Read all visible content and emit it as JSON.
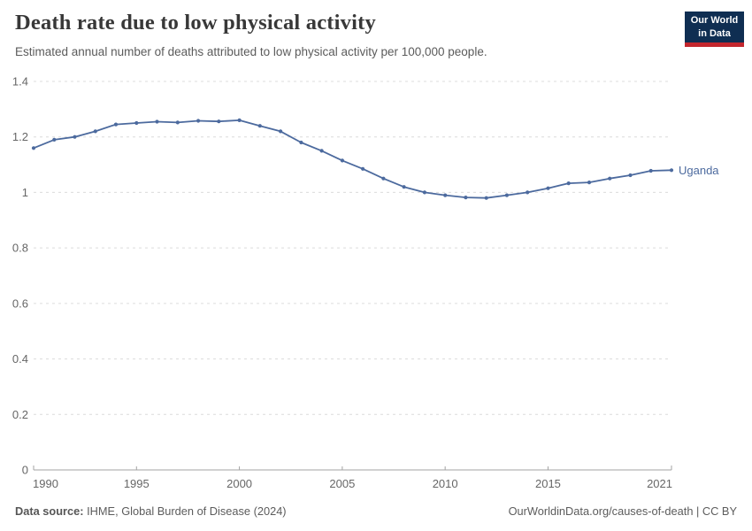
{
  "header": {
    "title": "Death rate due to low physical activity",
    "subtitle": "Estimated annual number of deaths attributed to low physical activity per 100,000 people.",
    "logo": {
      "line1": "Our World",
      "line2": "in Data",
      "bg": "#0f2e52",
      "stripe": "#c3262d"
    }
  },
  "chart_data": {
    "type": "line",
    "title": "Death rate due to low physical activity",
    "xlabel": "",
    "ylabel": "",
    "x": [
      1990,
      1991,
      1992,
      1993,
      1994,
      1995,
      1996,
      1997,
      1998,
      1999,
      2000,
      2001,
      2002,
      2003,
      2004,
      2005,
      2006,
      2007,
      2008,
      2009,
      2010,
      2011,
      2012,
      2013,
      2014,
      2015,
      2016,
      2017,
      2018,
      2019,
      2020,
      2021
    ],
    "series": [
      {
        "name": "Uganda",
        "color": "#4c6a9e",
        "values": [
          1.16,
          1.19,
          1.2,
          1.22,
          1.245,
          1.25,
          1.255,
          1.252,
          1.258,
          1.256,
          1.26,
          1.24,
          1.22,
          1.18,
          1.15,
          1.115,
          1.085,
          1.05,
          1.02,
          1.0,
          0.99,
          0.982,
          0.98,
          0.99,
          1.0,
          1.015,
          1.033,
          1.036,
          1.05,
          1.062,
          1.078,
          1.08
        ]
      }
    ],
    "ylim": [
      0,
      1.4
    ],
    "yticks": [
      0,
      0.2,
      0.4,
      0.6,
      0.8,
      1,
      1.2,
      1.4
    ],
    "xticks": [
      1990,
      1995,
      2000,
      2005,
      2010,
      2015,
      2021
    ],
    "grid": "horizontal-dashed",
    "legend": "end-of-line-label"
  },
  "footer": {
    "source_label": "Data source:",
    "source_text": "IHME, Global Burden of Disease (2024)",
    "credit": "OurWorldinData.org/causes-of-death | CC BY"
  },
  "colors": {
    "axis": "#a3a3a3",
    "grid": "#dcdcdc",
    "tick_text": "#666666",
    "line": "#4c6a9e",
    "title_text": "#383838",
    "subtitle_text": "#5b5b5b"
  }
}
